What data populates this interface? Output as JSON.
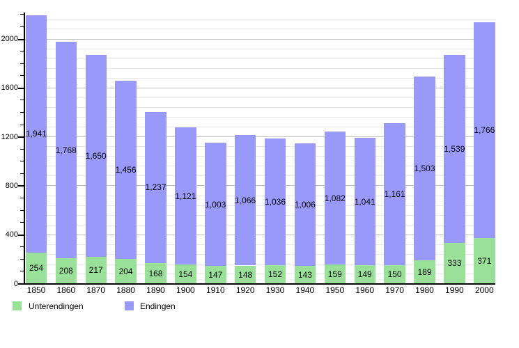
{
  "chart_data": {
    "type": "bar",
    "stacked": true,
    "title": "",
    "categories": [
      "1850",
      "1860",
      "1870",
      "1880",
      "1890",
      "1900",
      "1910",
      "1920",
      "1930",
      "1940",
      "1950",
      "1960",
      "1970",
      "1980",
      "1990",
      "2000"
    ],
    "series": [
      {
        "name": "Unterendingen",
        "color": "#99e099",
        "values": [
          254,
          208,
          217,
          204,
          168,
          154,
          147,
          148,
          152,
          143,
          159,
          149,
          150,
          189,
          333,
          371
        ]
      },
      {
        "name": "Endingen",
        "color": "#9999fa",
        "values": [
          1941,
          1768,
          1650,
          1456,
          1237,
          1121,
          1003,
          1066,
          1036,
          1006,
          1082,
          1041,
          1161,
          1503,
          1539,
          1766
        ]
      }
    ],
    "data_labels": {
      "unterendingen": [
        "254",
        "208",
        "217",
        "204",
        "168",
        "154",
        "147",
        "148",
        "152",
        "143",
        "159",
        "149",
        "150",
        "189",
        "333",
        "371"
      ],
      "endingen": [
        "1,941",
        "1,768",
        "1,650",
        "1,456",
        "1,237",
        "1,121",
        "1,003",
        "1,066",
        "1,036",
        "1,006",
        "1,082",
        "1,041",
        "1,161",
        "1,503",
        "1,539",
        "1,766"
      ]
    },
    "xlabel": "",
    "ylabel": "",
    "ylim": [
      0,
      2200
    ],
    "y_axis": {
      "tick_labels": [
        "0",
        "400",
        "800",
        "1200",
        "1600",
        "2000"
      ],
      "major_step": 400,
      "minor_tick_step": 100,
      "minor_grid_step": 80
    },
    "grid": "horizontal",
    "legend_position": "bottom-left",
    "colors": {
      "grid_minor": "#e8e8e8",
      "grid_major": "#c0c0c0",
      "axis": "#000000",
      "text": "#000000",
      "background": "#ffffff"
    }
  }
}
